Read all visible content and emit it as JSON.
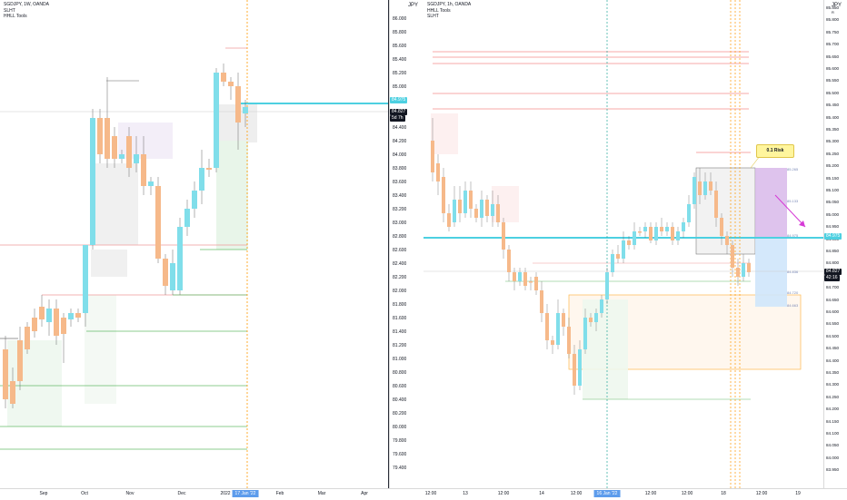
{
  "left_chart": {
    "title": "SGDJPY, 1W, OANDA",
    "indicators": [
      "SLHT",
      "HHLL Tools"
    ],
    "price_axis": [
      "86.000",
      "85.800",
      "85.600",
      "85.400",
      "85.200",
      "85.000",
      "84.800",
      "84.600",
      "84.400",
      "84.200",
      "84.000",
      "83.800",
      "83.600",
      "83.400",
      "83.200",
      "83.000",
      "82.800",
      "82.600",
      "82.400",
      "82.200",
      "82.000",
      "81.800",
      "81.600",
      "81.400",
      "81.200",
      "81.000",
      "80.800",
      "80.600",
      "80.400",
      "80.200",
      "80.000",
      "79.800",
      "79.600",
      "79.400"
    ],
    "current_price": "84.827",
    "countdown": "5d 7h",
    "level_tag": "84.975",
    "time_axis": [
      "Sep",
      "Oct",
      "Nov",
      "Dec",
      "2022",
      "Feb",
      "Mar",
      "Apr"
    ],
    "time_highlight": "17 Jan '22",
    "axis_icon": "JPY"
  },
  "right_chart": {
    "title": "SGDJPY, 1h, OANDA",
    "indicators": [
      "HHLL Tools",
      "SLHT"
    ],
    "price_axis": [
      "85.850",
      "85.800",
      "85.750",
      "85.700",
      "85.650",
      "85.600",
      "85.550",
      "85.500",
      "85.450",
      "85.400",
      "85.350",
      "85.300",
      "85.250",
      "85.200",
      "85.150",
      "85.100",
      "85.050",
      "85.000",
      "84.950",
      "84.900",
      "84.850",
      "84.800",
      "84.750",
      "84.700",
      "84.650",
      "84.600",
      "84.550",
      "84.500",
      "84.450",
      "84.400",
      "84.350",
      "84.300",
      "84.250",
      "84.200",
      "84.150",
      "84.100",
      "84.050",
      "84.000",
      "83.950"
    ],
    "current_price": "84.827",
    "countdown": "42:16",
    "level_tag": "84.975",
    "time_axis": [
      "12:00",
      "13",
      "12:00",
      "14",
      "12:00",
      "12:00",
      "12:00",
      "18",
      "12:00",
      "19",
      "12:00"
    ],
    "time_highlight": "16 Jan '22",
    "risk_label": "0.1 Risk",
    "box_labels": [
      "85.265",
      "85.133",
      "84.975",
      "84.836",
      "84.720",
      "84.663"
    ],
    "axis_icon": "JPY",
    "axis_icon2": "R"
  }
}
